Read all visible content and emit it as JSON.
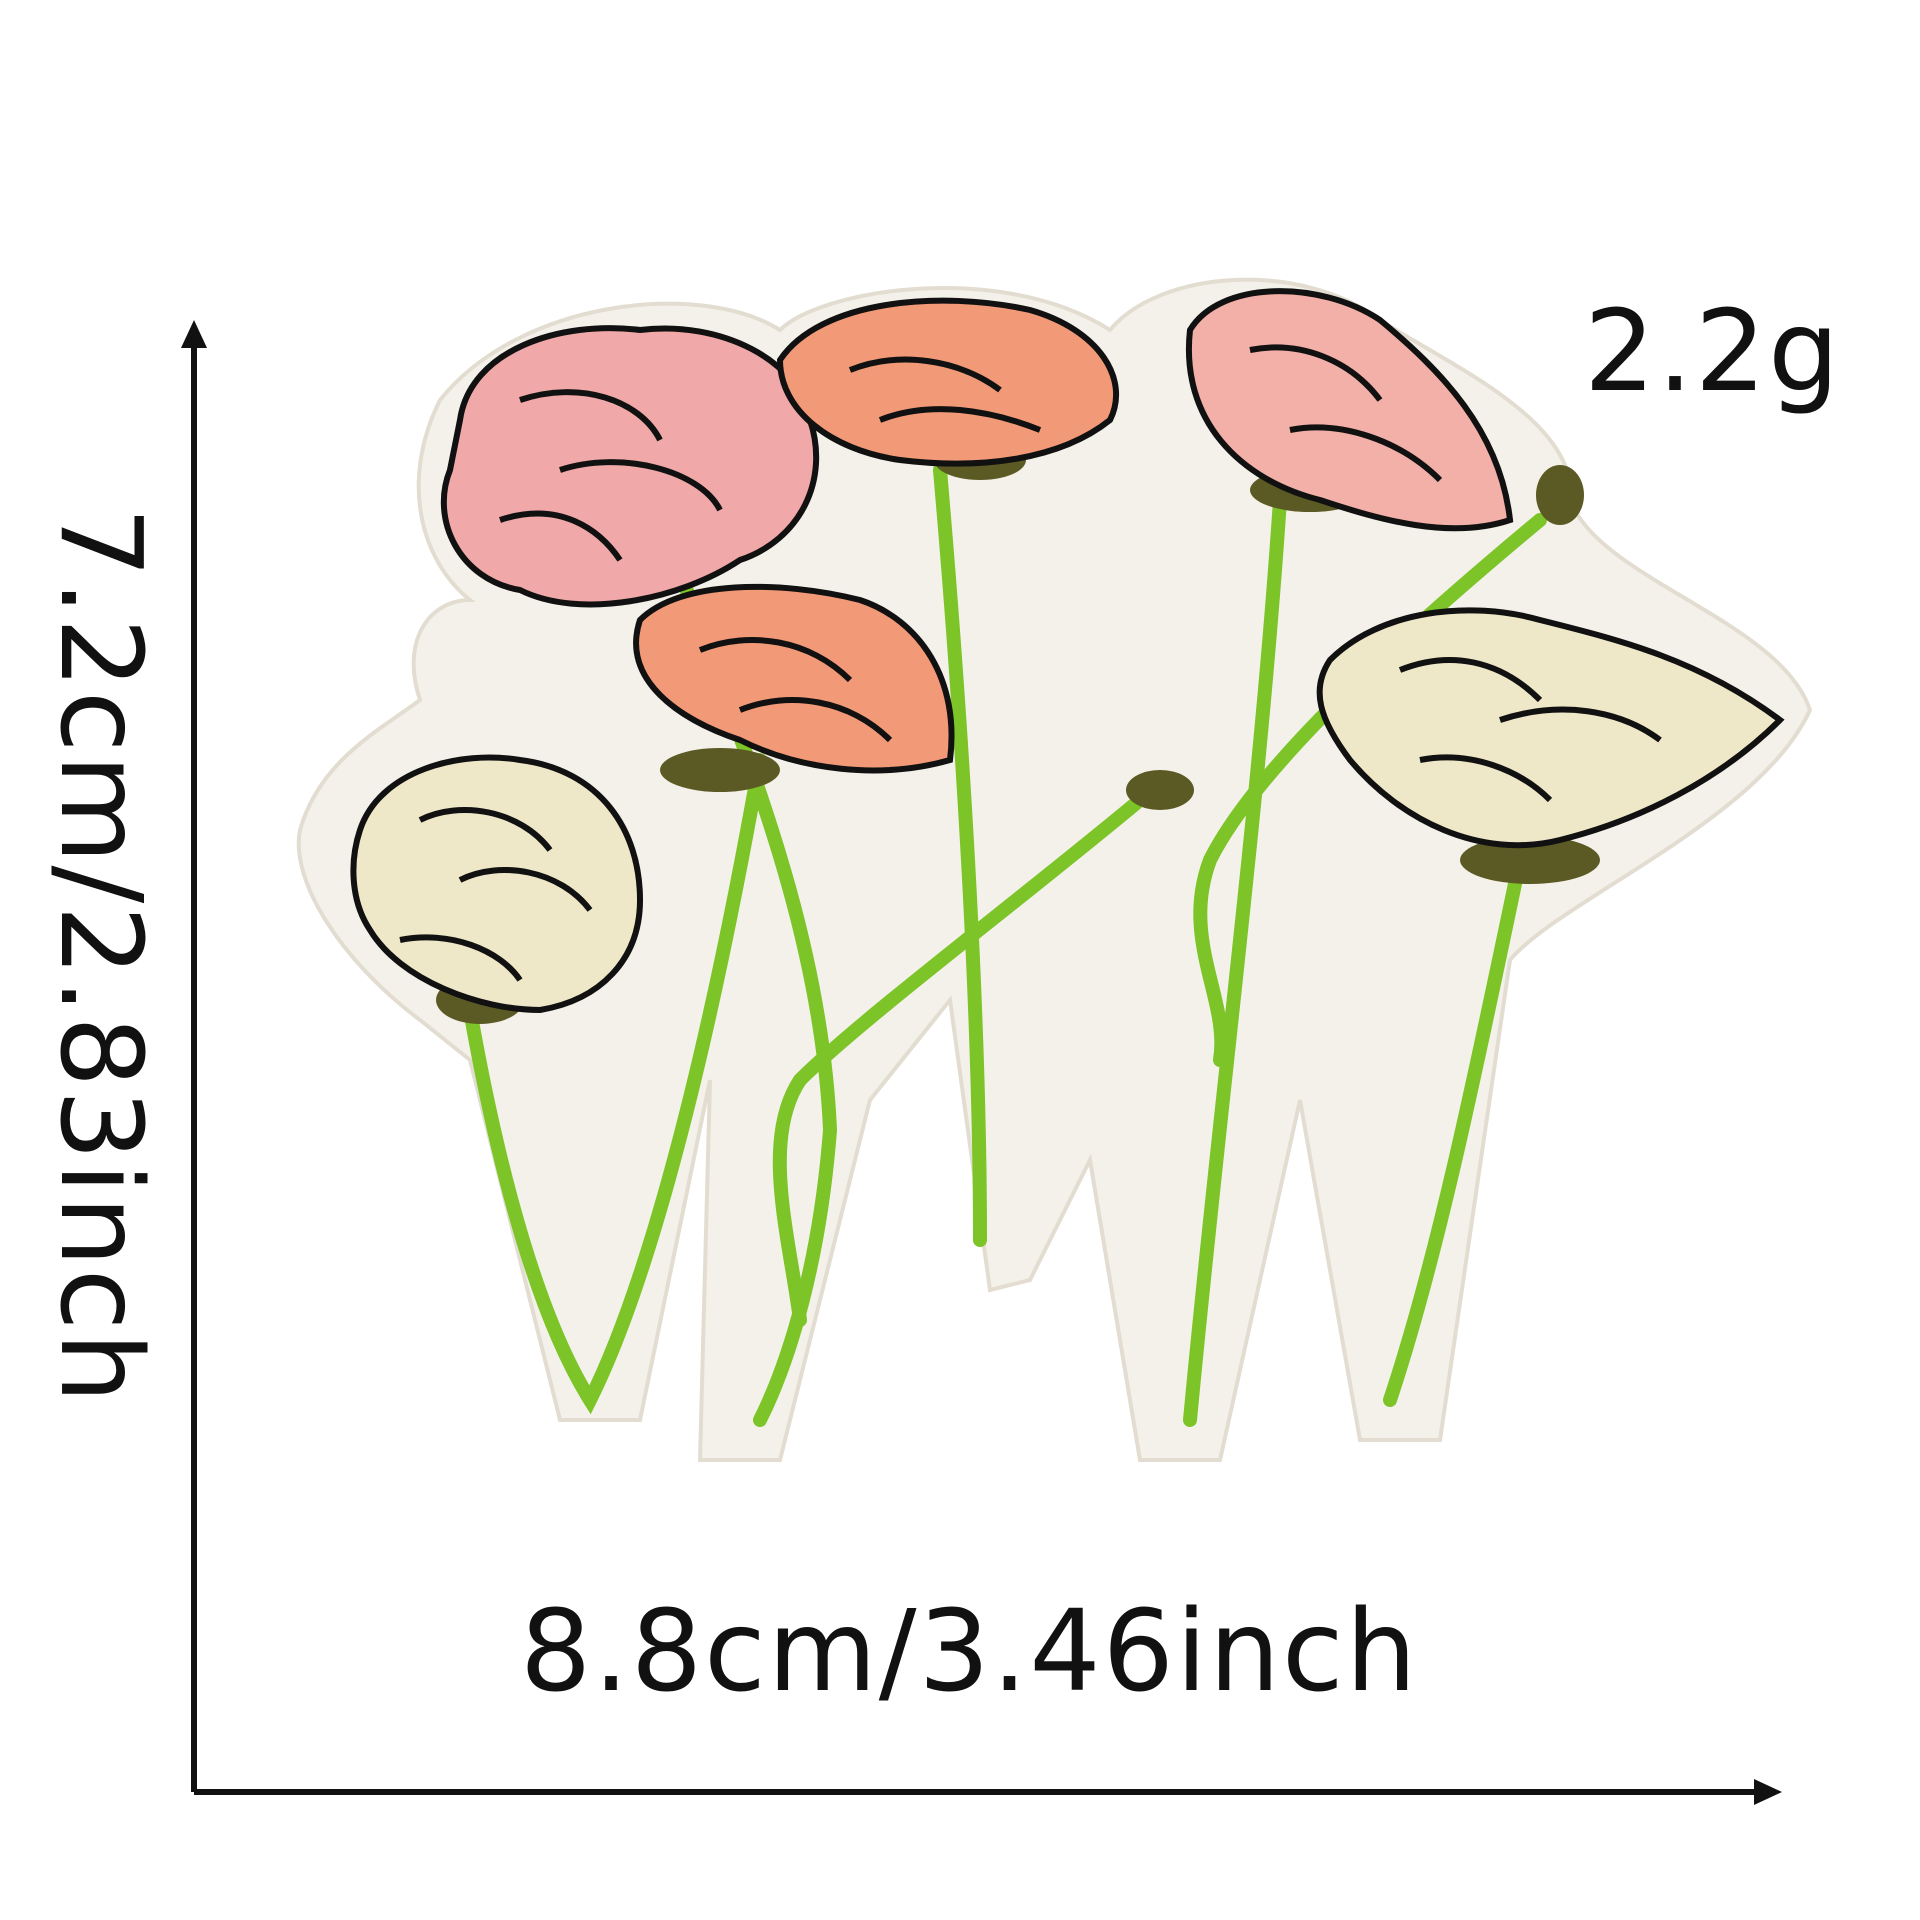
{
  "dimensions": {
    "width_label": "8.8cm/3.46inch",
    "height_label": "7.2cm/2.83inch",
    "weight_label": "2.2g"
  },
  "product": {
    "subject": "embroidered flower patch",
    "flower_count": 6
  },
  "colors": {
    "background": "#ffffff",
    "text": "#111111",
    "patch_base": "#f4f1ea",
    "stem": "#7cc427",
    "sepal": "#5c5a24",
    "outline": "#111111",
    "pink": "#f0a8a8",
    "peach": "#f29a78",
    "cream": "#efe8c8"
  }
}
